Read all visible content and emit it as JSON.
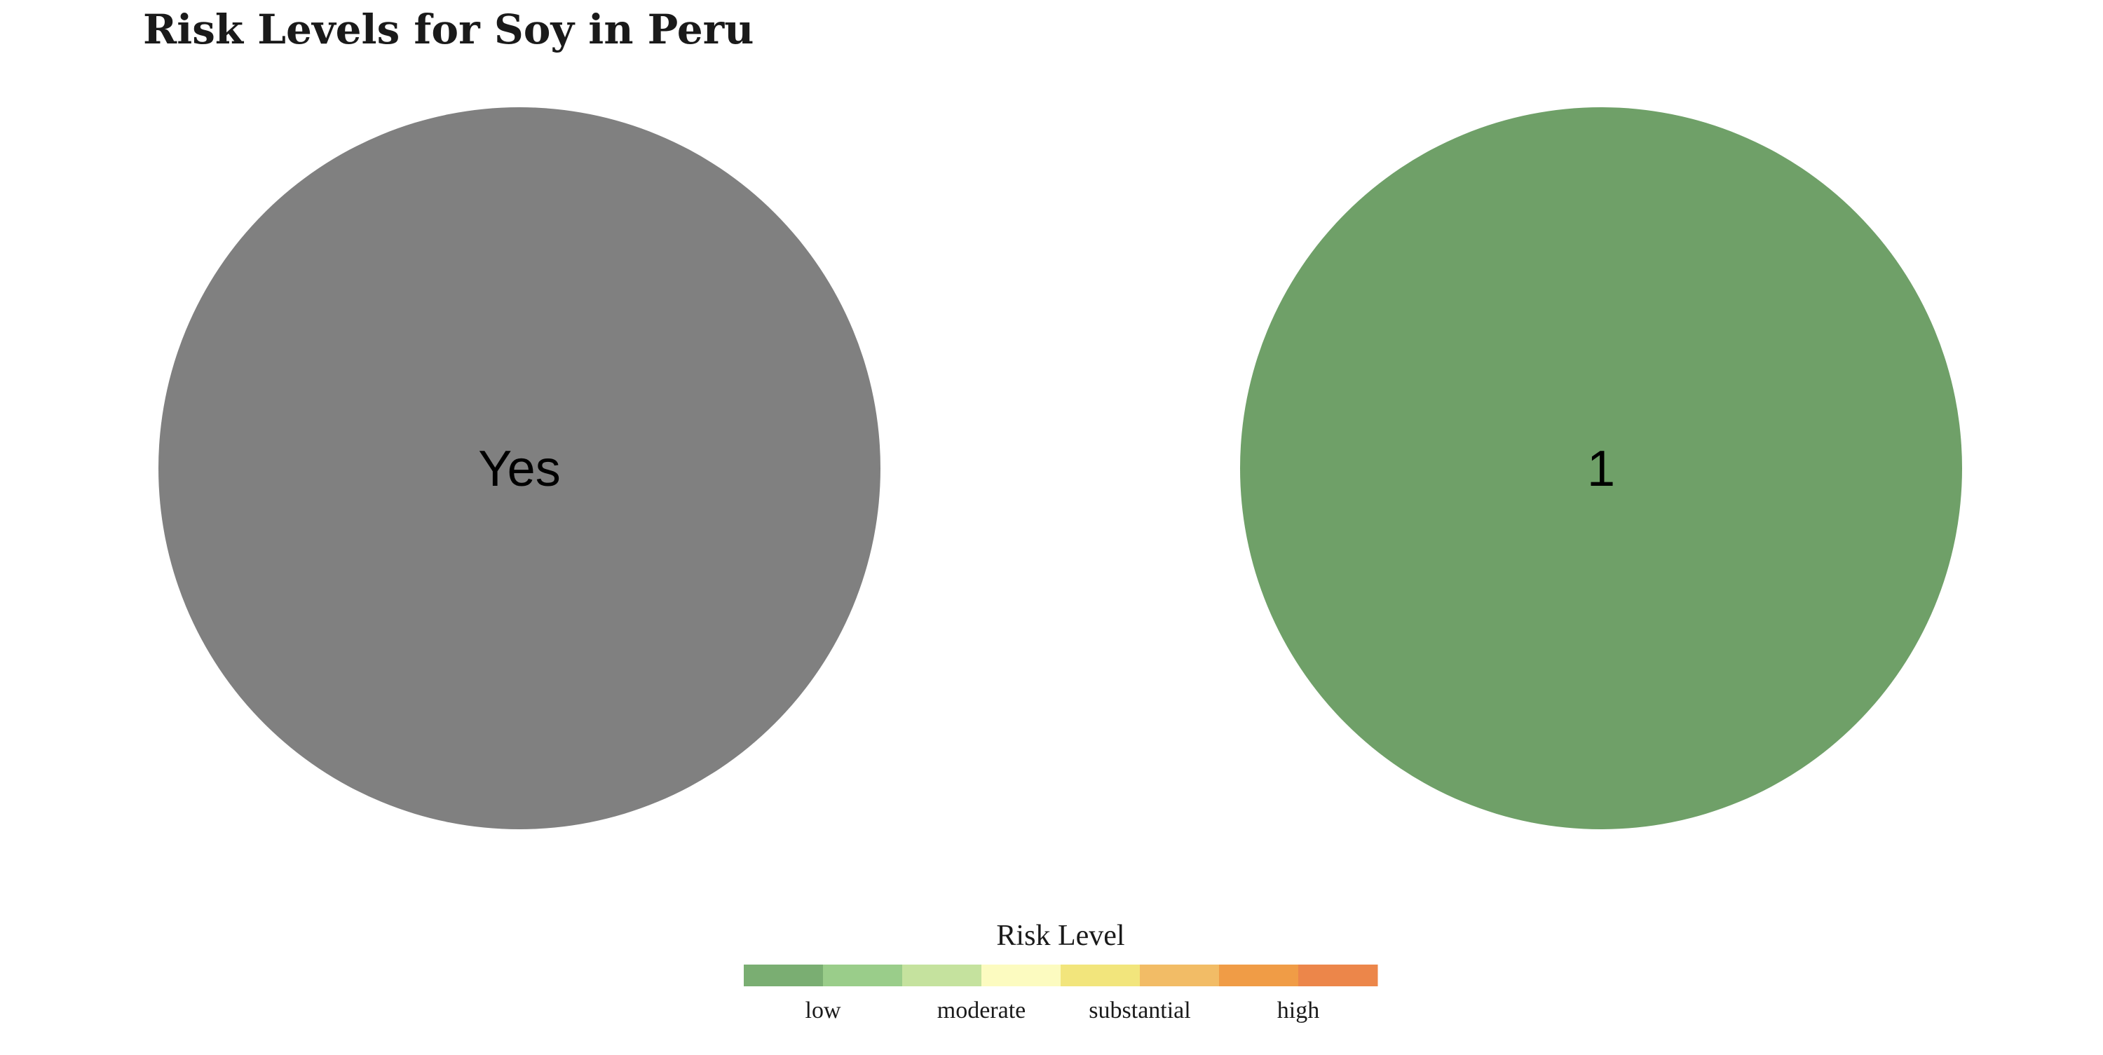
{
  "chart_data": {
    "type": "pie",
    "title": "Risk Levels for Soy in Peru",
    "panels": [
      {
        "label": "Yes",
        "value": 1,
        "color": "#808080"
      },
      {
        "label": "1",
        "value": 1,
        "color": "#6FA068"
      }
    ],
    "legend": {
      "title": "Risk Level",
      "placement": "bottom-center",
      "colors": [
        "#7AAE72",
        "#9ACD8A",
        "#C5E29E",
        "#FCFBC0",
        "#F2E57C",
        "#F2BC66",
        "#F09C46",
        "#EC864A"
      ],
      "tick_labels": [
        "low",
        "moderate",
        "substantial",
        "high"
      ]
    },
    "grid": false
  }
}
